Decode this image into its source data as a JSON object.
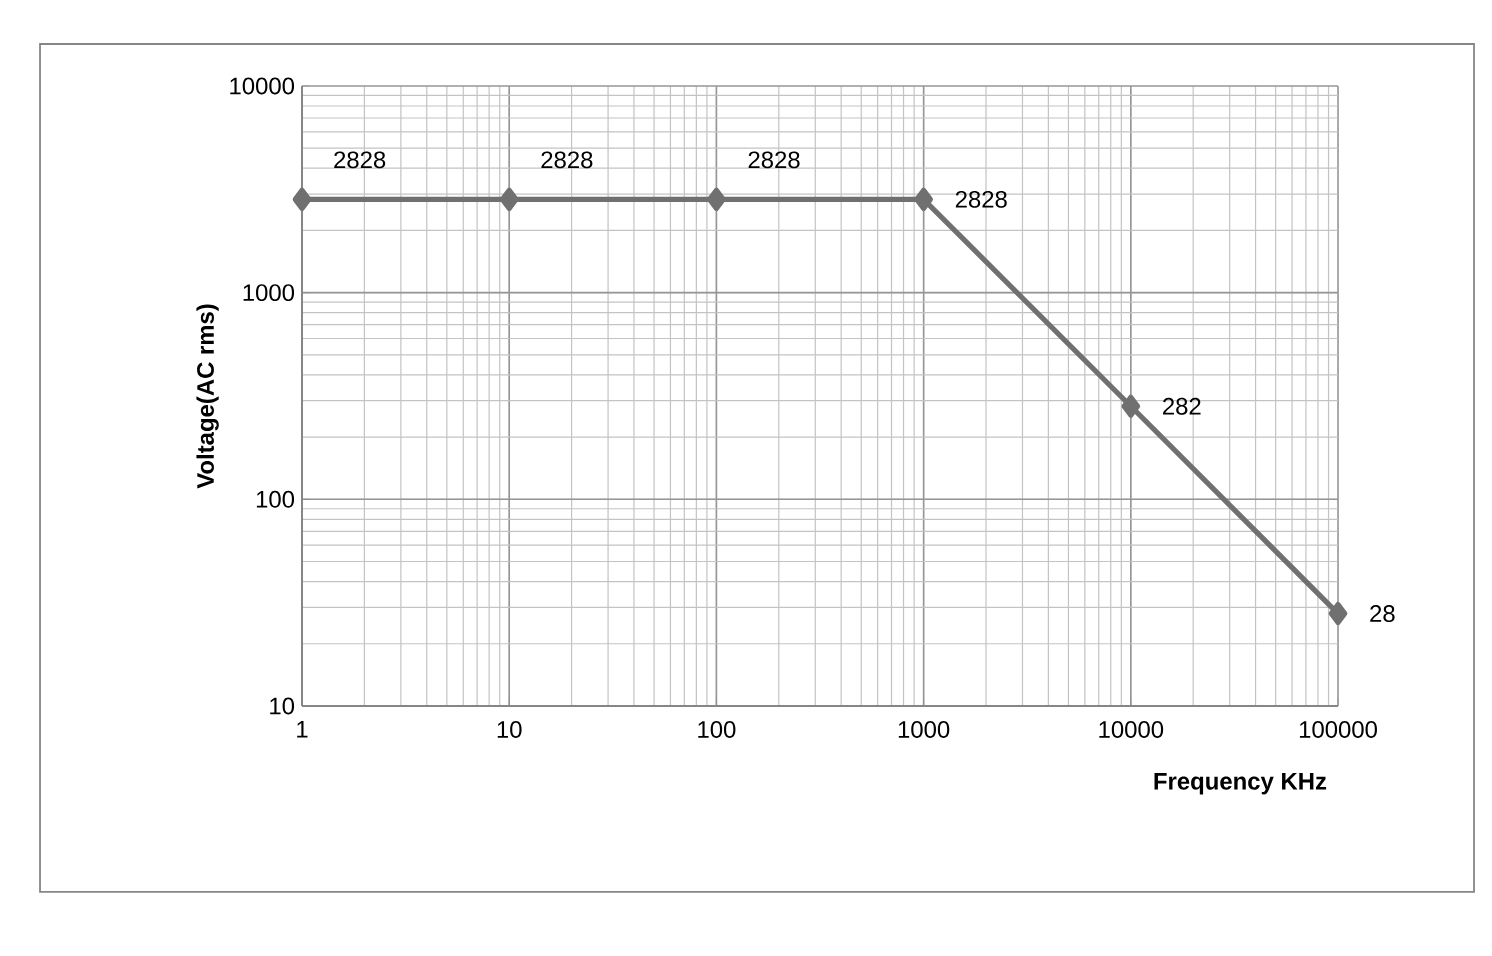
{
  "chart_data": {
    "type": "line",
    "xlabel": "Frequency KHz",
    "ylabel": "Voltage(AC rms)",
    "x": [
      1,
      10,
      100,
      1000,
      10000,
      100000
    ],
    "series": [
      {
        "color": "#707070",
        "values": [
          2828,
          2828,
          2828,
          2828,
          282,
          28
        ]
      }
    ],
    "log": "xy",
    "xlim": [
      1,
      100000
    ],
    "ylim": [
      10,
      10000
    ],
    "xticks": [
      1,
      10,
      100,
      1000,
      10000,
      100000
    ],
    "yticks": [
      10,
      100,
      1000,
      10000
    ],
    "grid": true,
    "marker": "diamond",
    "line_style": "solid",
    "data_labels": true
  }
}
